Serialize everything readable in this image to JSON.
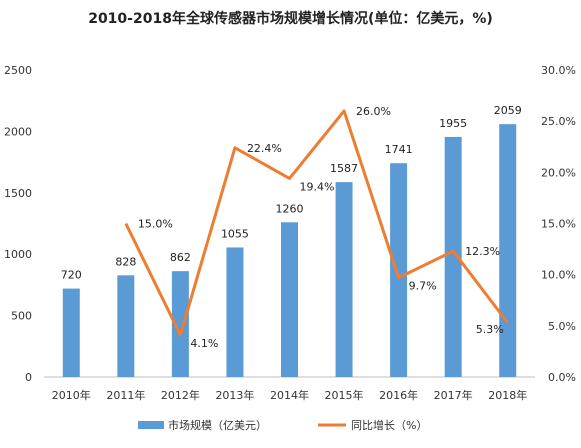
{
  "chart_data": {
    "type": "bar",
    "title": "2010-2018年全球传感器市场规模增长情况(单位：亿美元，%)",
    "categories": [
      "2010年",
      "2011年",
      "2012年",
      "2013年",
      "2014年",
      "2015年",
      "2016年",
      "2017年",
      "2018年"
    ],
    "series": [
      {
        "name": "市场规模（亿美元）",
        "type": "bar",
        "axis": "left",
        "color": "#5B9BD5",
        "values": [
          720,
          828,
          862,
          1055,
          1260,
          1587,
          1741,
          1955,
          2059
        ],
        "labels": [
          "720",
          "828",
          "862",
          "1055",
          "1260",
          "1587",
          "1741",
          "1955",
          "2059"
        ]
      },
      {
        "name": "同比增长（%）",
        "type": "line",
        "axis": "right",
        "color": "#ED7D31",
        "values": [
          null,
          15.0,
          4.1,
          22.4,
          19.4,
          26.0,
          9.7,
          12.3,
          5.3
        ],
        "labels": [
          "",
          "15.0%",
          "4.1%",
          "22.4%",
          "19.4%",
          "26.0%",
          "9.7%",
          "12.3%",
          "5.3%"
        ]
      }
    ],
    "y_left": {
      "ylim": [
        0,
        2500
      ],
      "ticks": [
        0,
        500,
        1000,
        1500,
        2000,
        2500
      ],
      "tick_labels": [
        "0",
        "500",
        "1000",
        "1500",
        "2000",
        "2500"
      ]
    },
    "y_right": {
      "ylim": [
        0,
        30
      ],
      "ticks": [
        0,
        5,
        10,
        15,
        20,
        25,
        30
      ],
      "tick_labels": [
        "0.0%",
        "5.0%",
        "10.0%",
        "15.0%",
        "20.0%",
        "25.0%",
        "30.0%"
      ]
    },
    "grid": false,
    "legend_position": "bottom"
  }
}
